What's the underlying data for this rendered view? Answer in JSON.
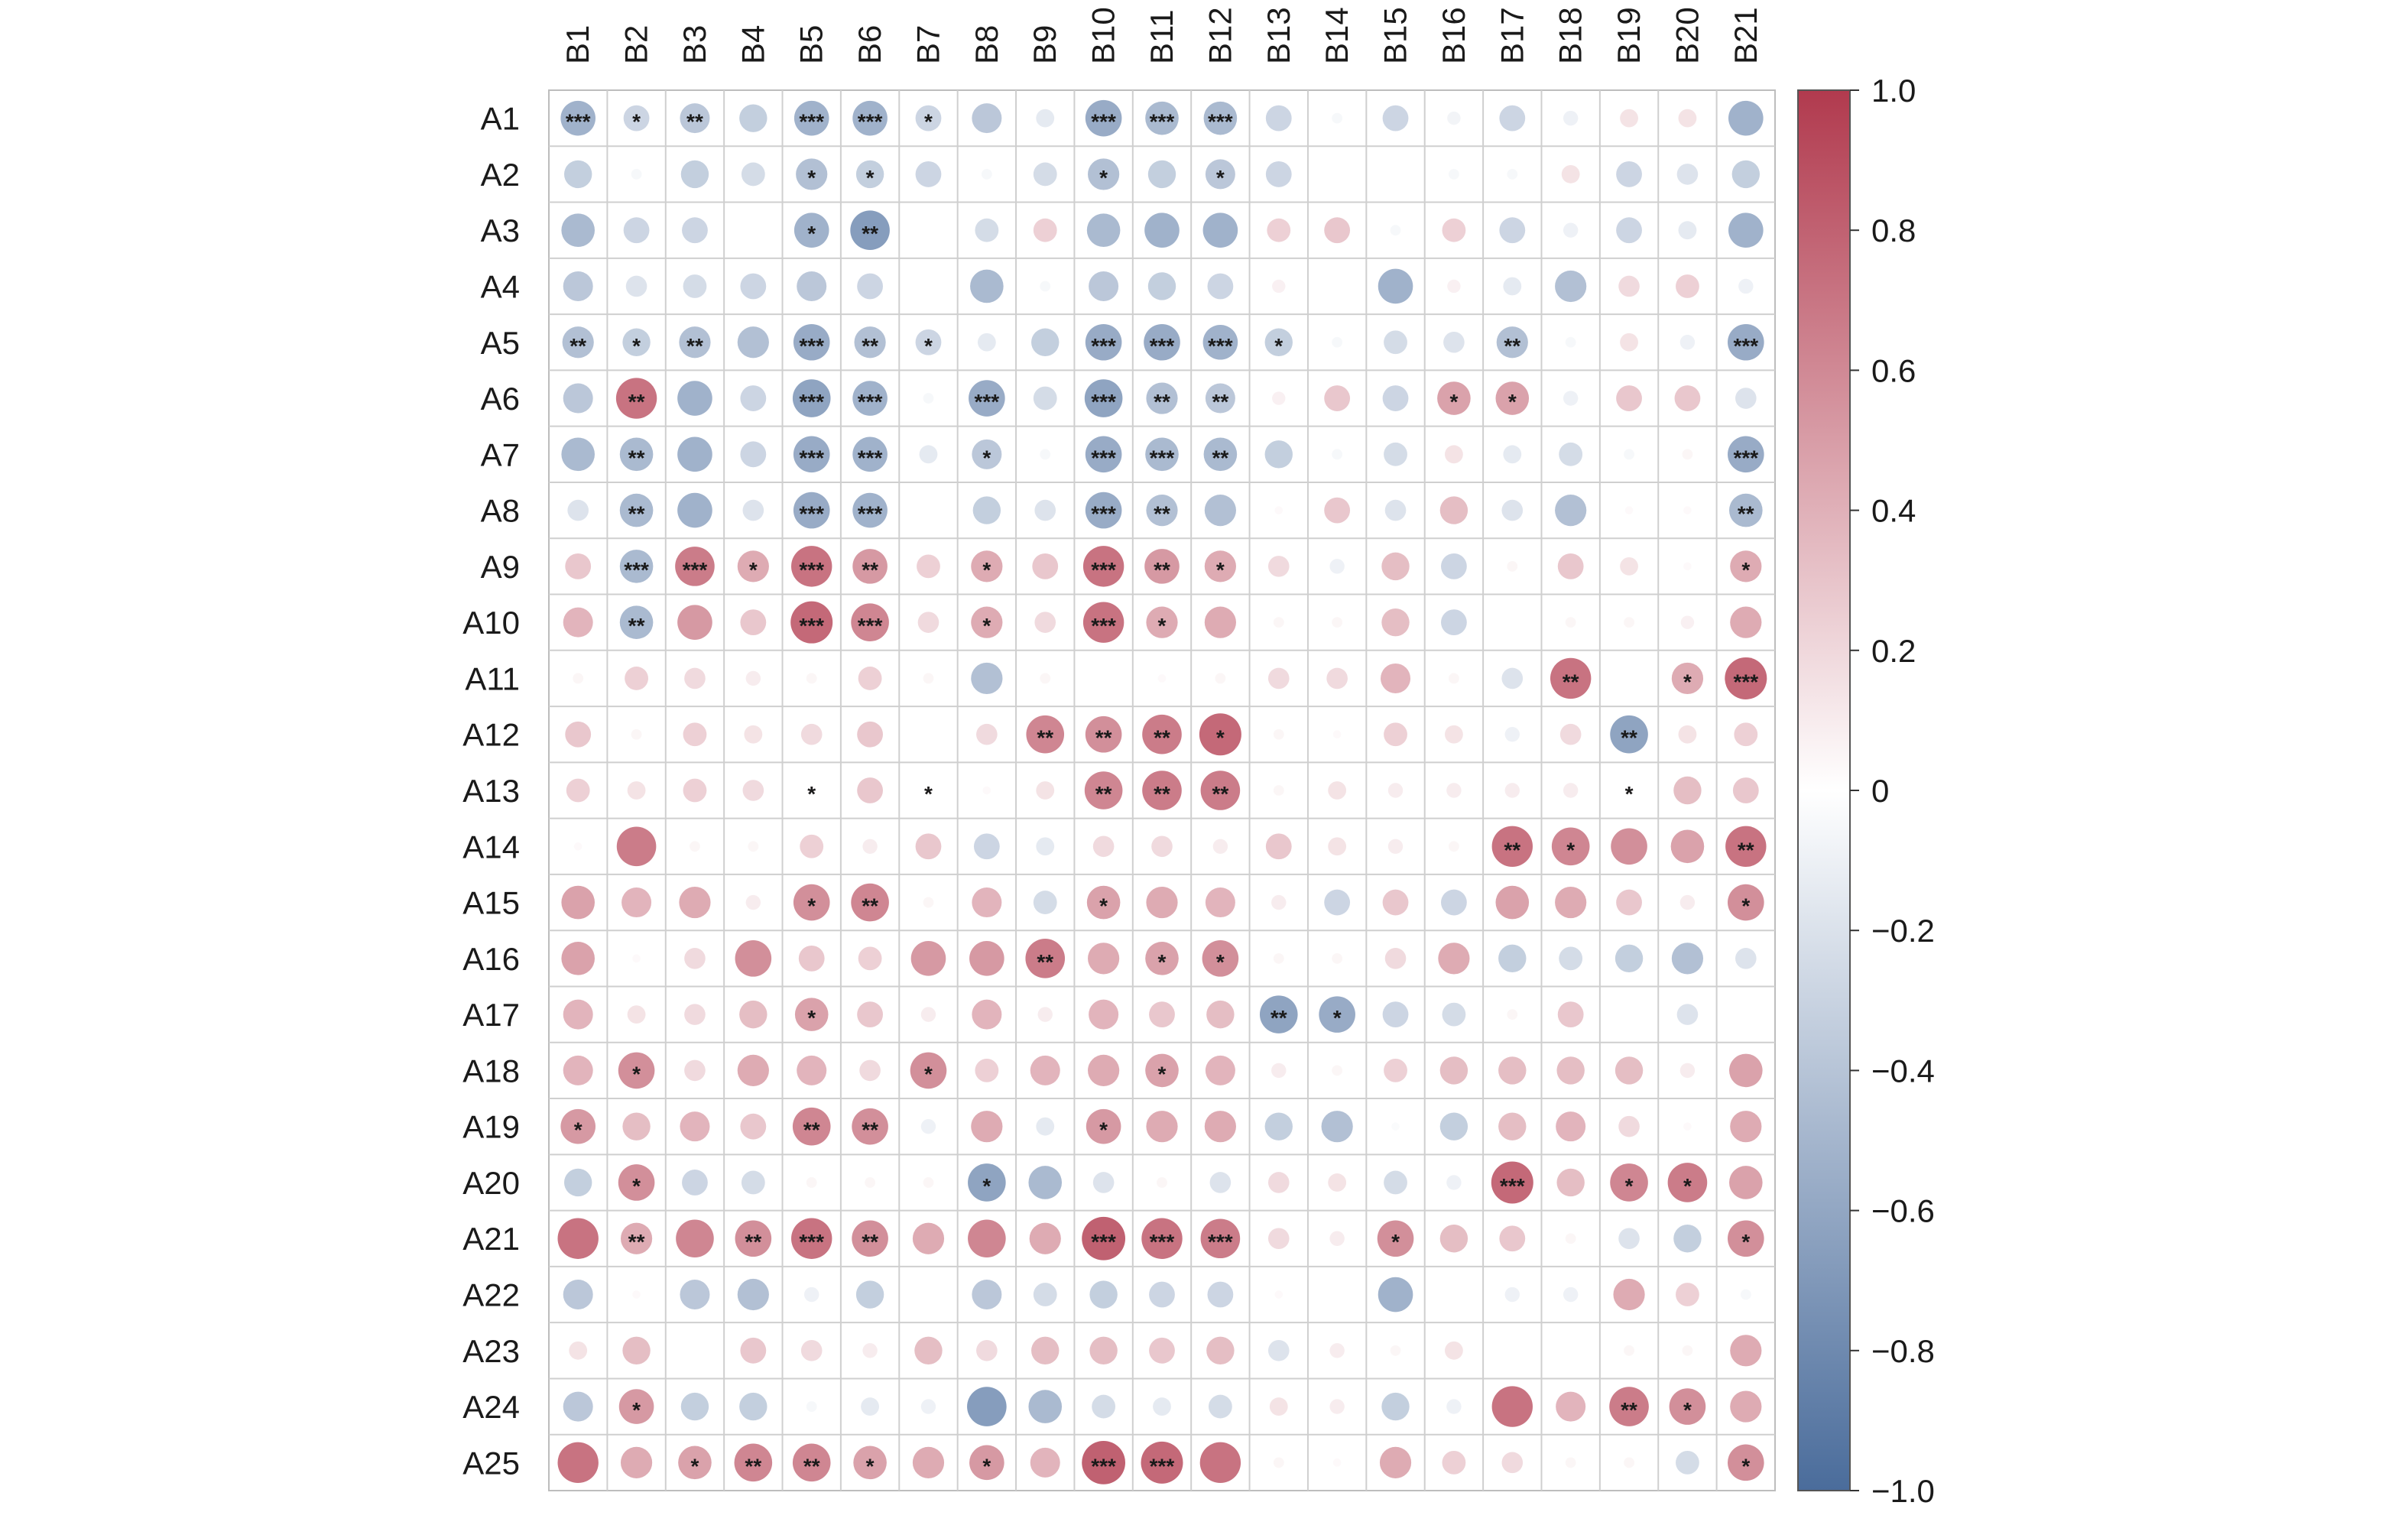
{
  "chart_data": {
    "type": "heatmap",
    "rows": [
      "A1",
      "A2",
      "A3",
      "A4",
      "A5",
      "A6",
      "A7",
      "A8",
      "A9",
      "A10",
      "A11",
      "A12",
      "A13",
      "A14",
      "A15",
      "A16",
      "A17",
      "A18",
      "A19",
      "A20",
      "A21",
      "A22",
      "A23",
      "A24",
      "A25"
    ],
    "columns": [
      "B1",
      "B2",
      "B3",
      "B4",
      "B5",
      "B6",
      "B7",
      "B8",
      "B9",
      "B10",
      "B11",
      "B12",
      "B13",
      "B14",
      "B15",
      "B16",
      "B17",
      "B18",
      "B19",
      "B20",
      "B21"
    ],
    "values": [
      [
        -0.55,
        -0.3,
        -0.4,
        -0.35,
        -0.55,
        -0.55,
        -0.3,
        -0.4,
        -0.15,
        -0.6,
        -0.5,
        -0.5,
        -0.3,
        -0.05,
        -0.3,
        -0.08,
        -0.3,
        -0.1,
        0.15,
        0.15,
        -0.55
      ],
      [
        -0.35,
        -0.05,
        -0.35,
        -0.25,
        -0.45,
        -0.35,
        -0.3,
        -0.05,
        -0.25,
        -0.45,
        -0.35,
        -0.4,
        -0.3,
        0,
        0,
        -0.05,
        -0.05,
        0.15,
        -0.3,
        -0.2,
        -0.35
      ],
      [
        -0.5,
        -0.3,
        -0.3,
        0,
        -0.55,
        -0.7,
        0,
        -0.25,
        0.25,
        -0.5,
        -0.55,
        -0.55,
        0.25,
        0.3,
        -0.05,
        0.25,
        -0.3,
        -0.1,
        -0.3,
        -0.15,
        -0.55
      ],
      [
        -0.4,
        -0.2,
        -0.25,
        -0.3,
        -0.4,
        -0.3,
        0,
        -0.5,
        -0.05,
        -0.4,
        -0.35,
        -0.3,
        0.08,
        0,
        -0.55,
        0.08,
        -0.15,
        -0.45,
        0.2,
        0.25,
        -0.1
      ],
      [
        -0.45,
        -0.35,
        -0.45,
        -0.45,
        -0.6,
        -0.45,
        -0.3,
        -0.15,
        -0.35,
        -0.6,
        -0.6,
        -0.55,
        -0.35,
        -0.05,
        -0.25,
        -0.2,
        -0.45,
        -0.05,
        0.15,
        -0.1,
        -0.6
      ],
      [
        -0.4,
        0.75,
        -0.55,
        -0.3,
        -0.65,
        -0.55,
        -0.05,
        -0.6,
        -0.25,
        -0.65,
        -0.45,
        -0.4,
        0.08,
        0.3,
        -0.3,
        0.5,
        0.5,
        -0.1,
        0.3,
        0.3,
        -0.2
      ],
      [
        -0.5,
        -0.5,
        -0.55,
        -0.3,
        -0.6,
        -0.55,
        -0.15,
        -0.4,
        -0.05,
        -0.6,
        -0.5,
        -0.5,
        -0.35,
        -0.05,
        -0.25,
        0.15,
        -0.15,
        -0.25,
        -0.05,
        0.05,
        -0.6
      ],
      [
        -0.2,
        -0.5,
        -0.55,
        -0.2,
        -0.6,
        -0.55,
        0,
        -0.35,
        -0.2,
        -0.6,
        -0.45,
        -0.45,
        0.03,
        0.3,
        -0.2,
        0.35,
        -0.2,
        -0.45,
        0.03,
        0.03,
        -0.5
      ],
      [
        0.3,
        -0.5,
        0.7,
        0.45,
        0.75,
        0.55,
        0.25,
        0.45,
        0.3,
        0.75,
        0.55,
        0.45,
        0.2,
        -0.1,
        0.35,
        -0.3,
        0.05,
        0.3,
        0.15,
        0.03,
        0.45
      ],
      [
        0.4,
        -0.5,
        0.55,
        0.3,
        0.8,
        0.65,
        0.2,
        0.45,
        0.2,
        0.75,
        0.45,
        0.45,
        0.05,
        0.05,
        0.35,
        -0.3,
        0,
        0.05,
        0.05,
        0.08,
        0.45
      ],
      [
        0.05,
        0.25,
        0.2,
        0.1,
        0.05,
        0.25,
        0.05,
        -0.45,
        0.05,
        0,
        0.03,
        0.05,
        0.2,
        0.2,
        0.4,
        0.05,
        -0.2,
        0.75,
        0,
        0.45,
        0.8
      ],
      [
        0.3,
        0.05,
        0.25,
        0.15,
        0.2,
        0.3,
        0,
        0.2,
        0.65,
        0.6,
        0.7,
        0.8,
        0.05,
        0.03,
        0.25,
        0.15,
        -0.1,
        0.2,
        -0.65,
        0.15,
        0.25
      ],
      [
        0.25,
        0.15,
        0.25,
        0.2,
        0.03,
        0.3,
        0.03,
        0.03,
        0.15,
        0.65,
        0.7,
        0.7,
        0.05,
        0.15,
        0.1,
        0.1,
        0.1,
        0.1,
        0.03,
        0.35,
        0.3
      ],
      [
        0.03,
        0.7,
        0.05,
        0.05,
        0.25,
        0.1,
        0.3,
        -0.3,
        -0.15,
        0.2,
        0.2,
        0.1,
        0.3,
        0.15,
        0.1,
        0.05,
        0.75,
        0.65,
        0.6,
        0.5,
        0.75
      ],
      [
        0.5,
        0.4,
        0.45,
        0.1,
        0.6,
        0.65,
        0.05,
        0.4,
        -0.25,
        0.5,
        0.45,
        0.4,
        0.1,
        -0.3,
        0.3,
        -0.3,
        0.5,
        0.45,
        0.3,
        0.1,
        0.6
      ],
      [
        0.5,
        0.03,
        0.2,
        0.6,
        0.3,
        0.25,
        0.55,
        0.55,
        0.7,
        0.45,
        0.5,
        0.6,
        0.05,
        0.05,
        0.2,
        0.45,
        -0.35,
        -0.25,
        -0.35,
        -0.45,
        -0.2
      ],
      [
        0.4,
        0.15,
        0.2,
        0.35,
        0.5,
        0.3,
        0.1,
        0.4,
        0.1,
        0.4,
        0.3,
        0.35,
        -0.65,
        -0.6,
        -0.3,
        -0.25,
        0.05,
        0.3,
        0,
        -0.2,
        0
      ],
      [
        0.4,
        0.6,
        0.2,
        0.45,
        0.4,
        0.2,
        0.6,
        0.25,
        0.4,
        0.45,
        0.5,
        0.4,
        0.1,
        0.05,
        0.25,
        0.35,
        0.35,
        0.35,
        0.35,
        0.1,
        0.5
      ],
      [
        0.55,
        0.35,
        0.4,
        0.3,
        0.65,
        0.6,
        -0.1,
        0.45,
        -0.15,
        0.55,
        0.45,
        0.45,
        -0.35,
        -0.45,
        -0.03,
        -0.35,
        0.35,
        0.4,
        0.2,
        0.03,
        0.45
      ],
      [
        -0.35,
        0.6,
        -0.3,
        -0.25,
        0.05,
        0.05,
        0.05,
        -0.65,
        -0.5,
        -0.2,
        0.05,
        -0.2,
        0.2,
        0.15,
        -0.25,
        -0.1,
        0.8,
        0.35,
        0.65,
        0.7,
        0.5
      ],
      [
        0.75,
        0.45,
        0.65,
        0.6,
        0.75,
        0.6,
        0.45,
        0.65,
        0.45,
        0.85,
        0.75,
        0.7,
        0.2,
        0.1,
        0.6,
        0.35,
        0.3,
        0.05,
        -0.2,
        -0.35,
        0.6
      ],
      [
        -0.4,
        0.03,
        -0.4,
        -0.45,
        -0.1,
        -0.35,
        0,
        -0.4,
        -0.25,
        -0.35,
        -0.3,
        -0.3,
        0.03,
        0,
        -0.55,
        0,
        -0.1,
        -0.1,
        0.45,
        0.25,
        -0.05
      ],
      [
        0.15,
        0.35,
        0,
        0.3,
        0.2,
        0.1,
        0.35,
        0.2,
        0.35,
        0.35,
        0.3,
        0.35,
        -0.2,
        0.1,
        0.05,
        0.15,
        0,
        0,
        0.05,
        0.05,
        0.45
      ],
      [
        -0.4,
        0.55,
        -0.35,
        -0.35,
        -0.05,
        -0.15,
        -0.1,
        -0.7,
        -0.5,
        -0.25,
        -0.15,
        -0.25,
        0.15,
        0.1,
        -0.35,
        -0.1,
        0.75,
        0.4,
        0.7,
        0.6,
        0.45
      ],
      [
        0.75,
        0.45,
        0.5,
        0.65,
        0.65,
        0.5,
        0.45,
        0.55,
        0.4,
        0.85,
        0.8,
        0.75,
        0.05,
        0.03,
        0.45,
        0.25,
        0.2,
        0.05,
        0.05,
        -0.25,
        0.6
      ]
    ],
    "stars": [
      [
        "***",
        "*",
        "**",
        "",
        "***",
        "***",
        "*",
        "",
        "",
        "***",
        "***",
        "***",
        "",
        "",
        "",
        "",
        "",
        "",
        "",
        "",
        ""
      ],
      [
        "",
        "",
        "",
        "",
        "*",
        "*",
        "",
        "",
        "",
        "*",
        "",
        "*",
        "",
        "",
        "",
        "",
        "",
        "",
        "",
        "",
        ""
      ],
      [
        "",
        "",
        "",
        "",
        "*",
        "**",
        "",
        "",
        "",
        "",
        "",
        "",
        "",
        "",
        "",
        "",
        "",
        "",
        "",
        "",
        ""
      ],
      [
        "",
        "",
        "",
        "",
        "",
        "",
        "",
        "",
        "",
        "",
        "",
        "",
        "",
        "",
        "",
        "",
        "",
        "",
        "",
        "",
        ""
      ],
      [
        "**",
        "*",
        "**",
        "",
        "***",
        "**",
        "*",
        "",
        "",
        "***",
        "***",
        "***",
        "*",
        "",
        "",
        "",
        "**",
        "",
        "",
        "",
        "***"
      ],
      [
        "",
        "**",
        "",
        "",
        "***",
        "***",
        "",
        "***",
        "",
        "***",
        "**",
        "**",
        "",
        "",
        "",
        "*",
        "*",
        "",
        "",
        "",
        ""
      ],
      [
        "",
        "**",
        "",
        "",
        "***",
        "***",
        "",
        "*",
        "",
        "***",
        "***",
        "**",
        "",
        "",
        "",
        "",
        "",
        "",
        "",
        "",
        "***"
      ],
      [
        "",
        "**",
        "",
        "",
        "***",
        "***",
        "",
        "",
        "",
        "***",
        "**",
        "",
        "",
        "",
        "",
        "",
        "",
        "",
        "",
        "",
        "**"
      ],
      [
        "",
        "***",
        "***",
        "*",
        "***",
        "**",
        "",
        "*",
        "",
        "***",
        "**",
        "*",
        "",
        "",
        "",
        "",
        "",
        "",
        "",
        "",
        "*"
      ],
      [
        "",
        "**",
        "",
        "",
        "***",
        "***",
        "",
        "*",
        "",
        "***",
        "*",
        "",
        "",
        "",
        "",
        "",
        "",
        "",
        "",
        "",
        ""
      ],
      [
        "",
        "",
        "",
        "",
        "",
        "",
        "",
        "",
        "",
        "",
        "",
        "",
        "",
        "",
        "",
        "",
        "",
        "**",
        "",
        "*",
        "***"
      ],
      [
        "",
        "",
        "",
        "",
        "",
        "",
        "",
        "",
        "**",
        "**",
        "**",
        "*",
        "",
        "",
        "",
        "",
        "",
        "",
        "**",
        "",
        ""
      ],
      [
        "",
        "",
        "",
        "",
        "*",
        "",
        "*",
        "",
        "",
        "**",
        "**",
        "**",
        "",
        "",
        "",
        "",
        "",
        "",
        "*",
        "",
        ""
      ],
      [
        "",
        "",
        "",
        "",
        "",
        "",
        "",
        "",
        "",
        "",
        "",
        "",
        "",
        "",
        "",
        "",
        "**",
        "*",
        "",
        "",
        "**"
      ],
      [
        "",
        "",
        "",
        "",
        "*",
        "**",
        "",
        "",
        "",
        "*",
        "",
        "",
        "",
        "",
        "",
        "",
        "",
        "",
        "",
        "",
        "*"
      ],
      [
        "",
        "",
        "",
        "",
        "",
        "",
        "",
        "",
        "**",
        "",
        "*",
        "*",
        "",
        "",
        "",
        "",
        "",
        "",
        "",
        "",
        ""
      ],
      [
        "",
        "",
        "",
        "",
        "*",
        "",
        "",
        "",
        "",
        "",
        "",
        "",
        "**",
        "*",
        "",
        "",
        "",
        "",
        "",
        "",
        ""
      ],
      [
        "",
        "*",
        "",
        "",
        "",
        "",
        "*",
        "",
        "",
        "",
        "*",
        "",
        "",
        "",
        "",
        "",
        "",
        "",
        "",
        "",
        ""
      ],
      [
        "*",
        "",
        "",
        "",
        "**",
        "**",
        "",
        "",
        "",
        "*",
        "",
        "",
        "",
        "",
        "",
        "",
        "",
        "",
        "",
        "",
        ""
      ],
      [
        "",
        "*",
        "",
        "",
        "",
        "",
        "",
        "*",
        "",
        "",
        "",
        "",
        "",
        "",
        "",
        "",
        "***",
        "",
        "*",
        "*",
        ""
      ],
      [
        "",
        "**",
        "",
        "**",
        "***",
        "**",
        "",
        "",
        "",
        "***",
        "***",
        "***",
        "",
        "",
        "*",
        "",
        "",
        "",
        "",
        "",
        "*"
      ],
      [
        "",
        "",
        "",
        "",
        "",
        "",
        "",
        "",
        "",
        "",
        "",
        "",
        "",
        "",
        "",
        "",
        "",
        "",
        "",
        "",
        ""
      ],
      [
        "",
        "",
        "",
        "",
        "",
        "",
        "",
        "",
        "",
        "",
        "",
        "",
        "",
        "",
        "",
        "",
        "",
        "",
        "",
        "",
        ""
      ],
      [
        "",
        "*",
        "",
        "",
        "",
        "",
        "",
        "",
        "",
        "",
        "",
        "",
        "",
        "",
        "",
        "",
        "",
        "",
        "**",
        "*",
        ""
      ],
      [
        "",
        "",
        "*",
        "**",
        "**",
        "*",
        "",
        "*",
        "",
        "***",
        "***",
        "",
        "",
        "",
        "",
        "",
        "",
        "",
        "",
        "",
        "*"
      ]
    ],
    "colorbar": {
      "ticks": [
        "1.0",
        "0.8",
        "0.6",
        "0.4",
        "0.2",
        "0",
        "−0.2",
        "−0.4",
        "−0.6",
        "−0.8",
        "−1.0"
      ],
      "range": [
        -1,
        1
      ],
      "colors": [
        "#4a6c9b",
        "#ffffff",
        "#b13a4e"
      ]
    },
    "grid": true,
    "legend": "right"
  }
}
